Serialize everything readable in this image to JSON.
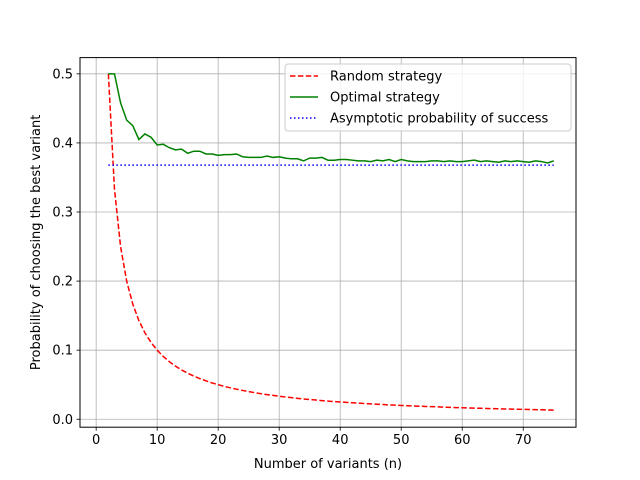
{
  "chart_data": {
    "type": "line",
    "xlabel": "Number of variants (n)",
    "ylabel": "Probability of choosing the best variant",
    "xlim": [
      -2.65,
      78.65
    ],
    "ylim": [
      -0.0115,
      0.5235
    ],
    "xticks": [
      "0",
      "10",
      "20",
      "30",
      "40",
      "50",
      "60",
      "70"
    ],
    "yticks": [
      "0.0",
      "0.1",
      "0.2",
      "0.3",
      "0.4",
      "0.5"
    ],
    "grid": true,
    "legend_position": "upper right",
    "series": [
      {
        "name": "Random strategy",
        "color": "#ff0000",
        "style": "dashed",
        "x_start": 2,
        "values": [
          0.5,
          0.3333,
          0.25,
          0.2,
          0.1667,
          0.1429,
          0.125,
          0.1111,
          0.1,
          0.0909,
          0.0833,
          0.0769,
          0.0714,
          0.0667,
          0.0625,
          0.0588,
          0.0556,
          0.0526,
          0.05,
          0.0476,
          0.0455,
          0.0435,
          0.0417,
          0.04,
          0.0385,
          0.037,
          0.0357,
          0.0345,
          0.0333,
          0.0323,
          0.0313,
          0.0303,
          0.0294,
          0.0286,
          0.0278,
          0.027,
          0.0263,
          0.0256,
          0.025,
          0.0244,
          0.0238,
          0.0233,
          0.0227,
          0.0222,
          0.0217,
          0.0213,
          0.0208,
          0.0204,
          0.02,
          0.0196,
          0.0192,
          0.0189,
          0.0185,
          0.0182,
          0.0179,
          0.0175,
          0.0172,
          0.0169,
          0.0167,
          0.0164,
          0.0161,
          0.0159,
          0.0156,
          0.0154,
          0.0152,
          0.0149,
          0.0147,
          0.0145,
          0.0143,
          0.0141,
          0.0139,
          0.0137,
          0.0135,
          0.0133
        ]
      },
      {
        "name": "Optimal strategy",
        "color": "#008000",
        "style": "solid",
        "x_start": 2,
        "values": [
          0.5,
          0.5,
          0.458,
          0.433,
          0.425,
          0.405,
          0.413,
          0.408,
          0.397,
          0.398,
          0.393,
          0.39,
          0.391,
          0.385,
          0.388,
          0.388,
          0.384,
          0.384,
          0.382,
          0.383,
          0.383,
          0.384,
          0.38,
          0.379,
          0.379,
          0.379,
          0.381,
          0.379,
          0.38,
          0.378,
          0.377,
          0.377,
          0.374,
          0.378,
          0.378,
          0.379,
          0.375,
          0.375,
          0.376,
          0.376,
          0.375,
          0.374,
          0.374,
          0.373,
          0.375,
          0.374,
          0.376,
          0.373,
          0.376,
          0.374,
          0.373,
          0.373,
          0.373,
          0.374,
          0.374,
          0.373,
          0.374,
          0.373,
          0.373,
          0.374,
          0.375,
          0.373,
          0.374,
          0.373,
          0.372,
          0.374,
          0.373,
          0.374,
          0.373,
          0.372,
          0.374,
          0.373,
          0.371,
          0.374
        ]
      },
      {
        "name": "Asymptotic probability of success",
        "color": "#0000ff",
        "style": "dotted",
        "x_start": 2,
        "x_end": 75,
        "constant": 0.3679
      }
    ]
  }
}
